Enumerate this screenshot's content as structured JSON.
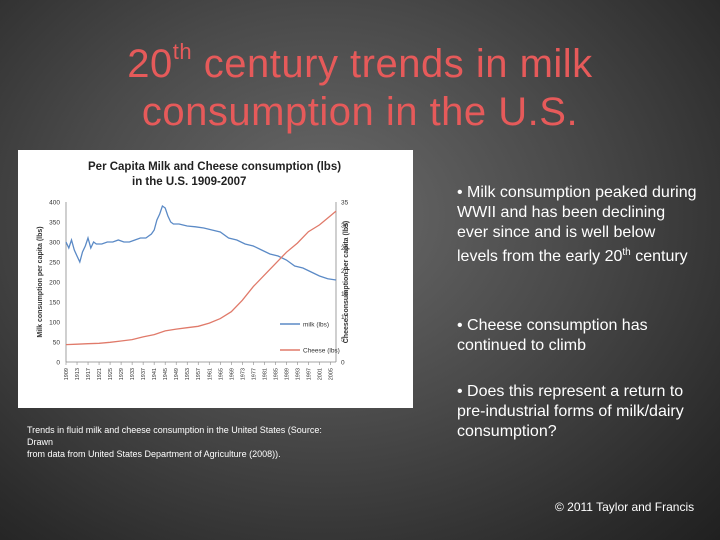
{
  "slide": {
    "title_line1_prefix": "20",
    "title_line1_sup": "th",
    "title_line1_suffix": " century trends in milk",
    "title_line2": "consumption in the U.S.",
    "caption_line1": "Trends in fluid milk and cheese consumption in the United States (Source:",
    "caption_line2": "Drawn",
    "caption_line3": "from data from United States Department of Agriculture (2008)).",
    "bullets": [
      {
        "pre": "• Milk consumption peaked during WWII and has been declining ever since and is well below levels from the early 20",
        "sup": "th",
        "post": " century"
      },
      {
        "pre": "• Cheese consumption has continued to climb",
        "sup": "",
        "post": ""
      },
      {
        "pre": "• Does this represent a return to pre-industrial forms of milk/dairy consumption?",
        "sup": "",
        "post": ""
      }
    ],
    "footer": "© 2011 Taylor and Francis"
  },
  "chart_data": {
    "type": "line",
    "title_line1": "Per Capita Milk and Cheese consumption (lbs)",
    "title_line2": "in the U.S. 1909-2007",
    "ylabel_left": "Milk consumption per capita (lbs)",
    "ylabel_right": "Cheese consumption per capita (lbs)",
    "ylim_left": [
      0,
      400
    ],
    "ylim_right": [
      0,
      35
    ],
    "yticks_left": [
      0,
      50,
      100,
      150,
      200,
      250,
      300,
      350,
      400
    ],
    "yticks_right": [
      0,
      5,
      10,
      15,
      20,
      25,
      30,
      35
    ],
    "xticks": [
      "1909",
      "1913",
      "1917",
      "1921",
      "1925",
      "1929",
      "1933",
      "1937",
      "1941",
      "1945",
      "1949",
      "1953",
      "1957",
      "1961",
      "1965",
      "1969",
      "1973",
      "1977",
      "1981",
      "1985",
      "1989",
      "1993",
      "1997",
      "2001",
      "2005"
    ],
    "grid": false,
    "legend_position": "right",
    "colors": {
      "milk": "#5b8ac6",
      "cheese": "#e07a6a"
    },
    "series": [
      {
        "name": "milk (lbs)",
        "axis": "left",
        "x": [
          1909,
          1910,
          1911,
          1912,
          1913,
          1914,
          1915,
          1916,
          1917,
          1918,
          1919,
          1920,
          1922,
          1924,
          1926,
          1928,
          1930,
          1932,
          1934,
          1936,
          1938,
          1940,
          1941,
          1942,
          1943,
          1944,
          1945,
          1946,
          1947,
          1948,
          1950,
          1953,
          1956,
          1959,
          1962,
          1965,
          1968,
          1971,
          1974,
          1977,
          1980,
          1983,
          1986,
          1989,
          1992,
          1995,
          1998,
          2001,
          2004,
          2007
        ],
        "values": [
          300,
          285,
          305,
          280,
          265,
          250,
          275,
          290,
          310,
          285,
          300,
          295,
          295,
          300,
          300,
          305,
          300,
          300,
          305,
          310,
          310,
          320,
          330,
          355,
          370,
          390,
          385,
          365,
          350,
          345,
          345,
          340,
          338,
          335,
          330,
          325,
          310,
          305,
          295,
          290,
          280,
          270,
          265,
          255,
          240,
          235,
          225,
          215,
          208,
          205
        ]
      },
      {
        "name": "Cheese (lbs)",
        "axis": "right",
        "x": [
          1909,
          1913,
          1917,
          1921,
          1925,
          1929,
          1933,
          1937,
          1941,
          1945,
          1949,
          1953,
          1957,
          1961,
          1965,
          1969,
          1973,
          1977,
          1981,
          1985,
          1989,
          1993,
          1997,
          2001,
          2005,
          2007
        ],
        "values": [
          3.8,
          3.9,
          4.0,
          4.1,
          4.3,
          4.6,
          4.9,
          5.5,
          6.0,
          6.8,
          7.2,
          7.5,
          7.8,
          8.5,
          9.5,
          11.0,
          13.5,
          16.5,
          19.0,
          21.5,
          24.0,
          26.0,
          28.5,
          30.0,
          32.0,
          33.0
        ]
      }
    ]
  }
}
